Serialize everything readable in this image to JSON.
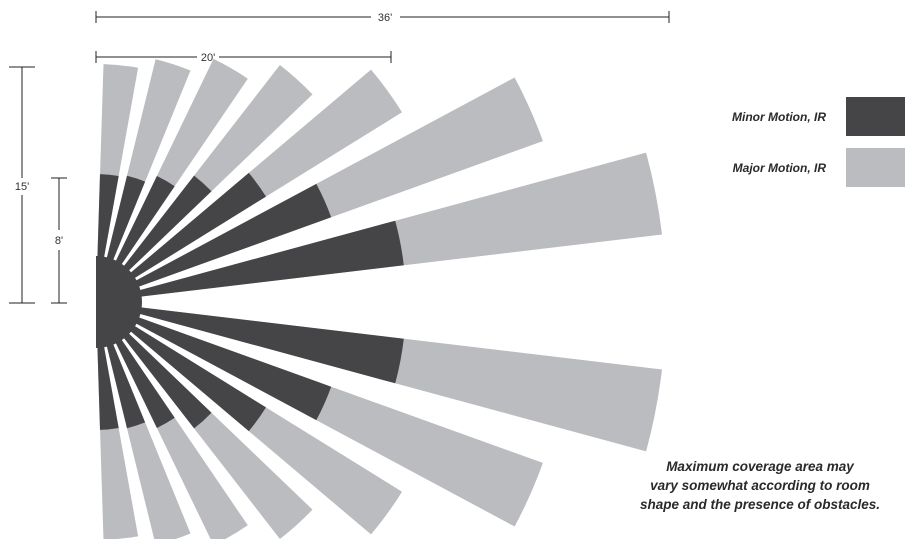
{
  "dimensions": {
    "overall_width": "36'",
    "minor_width": "20'",
    "major_height": "15'",
    "minor_height": "8'"
  },
  "legend": [
    {
      "label": "Minor Motion, IR",
      "color": "#454547"
    },
    {
      "label": "Major Motion, IR",
      "color": "#bbbcbf"
    }
  ],
  "note": {
    "lines": [
      "Maximum coverage area may",
      "vary somewhat according to room",
      "shape and the presence of obstacles."
    ]
  },
  "colors": {
    "minor": "#454547",
    "major": "#bbbcbf",
    "line": "#231f20"
  }
}
